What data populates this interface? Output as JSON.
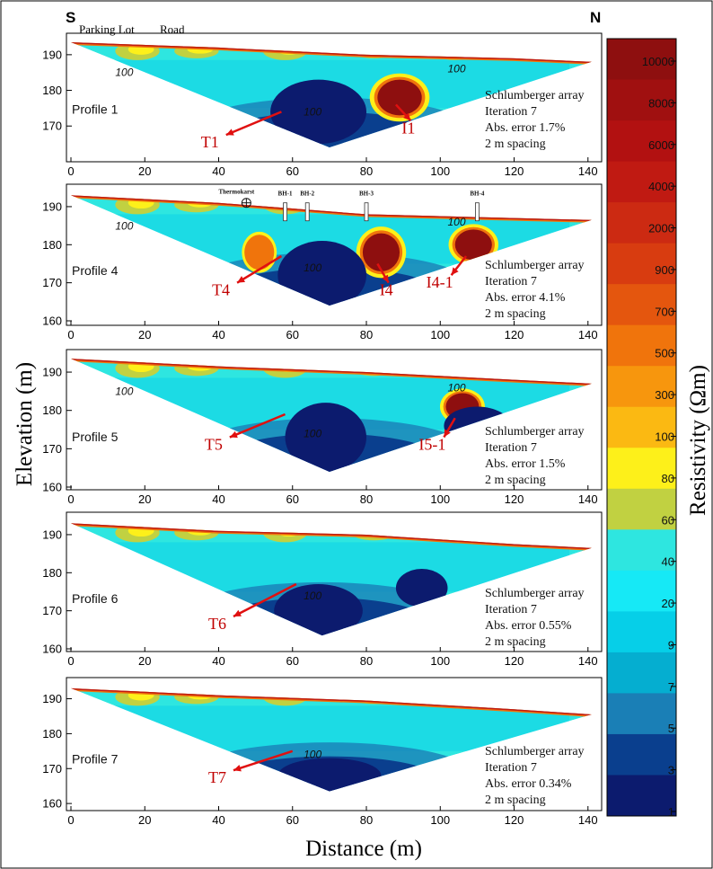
{
  "header": {
    "left_letter": "S",
    "right_letter": "N",
    "landmark_1": "Parking Lot",
    "landmark_2": "Road"
  },
  "chart_data": {
    "type": "heatmap",
    "xlabel": "Distance (m)",
    "ylabel": "Elevation (m)",
    "colorbar_label": "Resistivity (Ωm)",
    "xlim": [
      0,
      142
    ],
    "x_ticks": [
      0,
      20,
      40,
      60,
      80,
      100,
      120,
      140
    ],
    "colorbar": {
      "tick_labels": [
        "10000",
        "8000",
        "6000",
        "4000",
        "2000",
        "900",
        "700",
        "500",
        "300",
        "100",
        "80",
        "60",
        "40",
        "20",
        "9",
        "7",
        "5",
        "3",
        "1"
      ],
      "colors": [
        "#8e0f0f",
        "#a01010",
        "#b21111",
        "#c01a12",
        "#cc2a12",
        "#d83c10",
        "#e4560e",
        "#f0740c",
        "#f7960d",
        "#fbb912",
        "#fdf01a",
        "#c1d141",
        "#2ee6e0",
        "#16e9f6",
        "#06cfe8",
        "#05aed0",
        "#1a7fb6",
        "#0a3f8e",
        "#0c1b6e"
      ]
    },
    "profiles": [
      {
        "name": "Profile 1",
        "ylim": [
          163,
          194
        ],
        "y_ticks": [
          170,
          180,
          190
        ],
        "method": [
          "Schlumberger array",
          "Iteration 7",
          "Abs. error 1.7%",
          "2 m spacing"
        ],
        "surface": [
          [
            0,
            193.5
          ],
          [
            40,
            192
          ],
          [
            80,
            190
          ],
          [
            120,
            189
          ],
          [
            141,
            188
          ]
        ],
        "bottom_apex": [
          70,
          164
        ],
        "contours": [
          "100",
          "100",
          "100"
        ],
        "annotations": [
          {
            "label": "T1",
            "from": [
              57,
              174
            ],
            "to": [
              42,
              167.5
            ]
          },
          {
            "label": "I1",
            "from": [
              88,
              176
            ],
            "to": [
              92,
              171.5
            ]
          }
        ],
        "anomalies": [
          {
            "cx": 89,
            "cy": 178,
            "rx": 6,
            "ry": 5,
            "class": ">10000"
          },
          {
            "cx": 67,
            "cy": 174,
            "rx": 13,
            "ry": 9,
            "class": "<1"
          }
        ]
      },
      {
        "name": "Profile 4",
        "ylim": [
          160,
          194
        ],
        "y_ticks": [
          160,
          170,
          180,
          190
        ],
        "method": [
          "Schlumberger array",
          "Iteration 7",
          "Abs. error 4.1%",
          "2 m spacing"
        ],
        "surface": [
          [
            0,
            193
          ],
          [
            40,
            191
          ],
          [
            80,
            188
          ],
          [
            120,
            187
          ],
          [
            141,
            186.5
          ]
        ],
        "bottom_apex": [
          70,
          164
        ],
        "contours": [
          "100",
          "100",
          "100"
        ],
        "boreholes": [
          "BH-1",
          "BH-2",
          "BH-3",
          "BH-4"
        ],
        "feature_label": "Thermokarst",
        "annotations": [
          {
            "label": "T4",
            "from": [
              57,
              177
            ],
            "to": [
              45,
              170
            ]
          },
          {
            "label": "I4",
            "from": [
              83,
              175
            ],
            "to": [
              86,
              170
            ]
          },
          {
            "label": "I4-1",
            "from": [
              107,
              177
            ],
            "to": [
              103,
              172
            ]
          }
        ],
        "anomalies": [
          {
            "cx": 51,
            "cy": 178,
            "rx": 3.5,
            "ry": 4,
            "class": "1000-2000"
          },
          {
            "cx": 84,
            "cy": 178,
            "rx": 5,
            "ry": 5,
            "class": ">10000"
          },
          {
            "cx": 109,
            "cy": 180,
            "rx": 5,
            "ry": 4,
            "class": ">10000"
          },
          {
            "cx": 68,
            "cy": 172,
            "rx": 12,
            "ry": 9,
            "class": "<1"
          }
        ]
      },
      {
        "name": "Profile 5",
        "ylim": [
          160,
          194
        ],
        "y_ticks": [
          160,
          170,
          180,
          190
        ],
        "method": [
          "Schlumberger array",
          "Iteration 7",
          "Abs. error 1.5%",
          "2 m spacing"
        ],
        "surface": [
          [
            0,
            193.5
          ],
          [
            40,
            191.5
          ],
          [
            80,
            190
          ],
          [
            120,
            188
          ],
          [
            141,
            187
          ]
        ],
        "bottom_apex": [
          70,
          164
        ],
        "contours": [
          "100",
          "100",
          "100"
        ],
        "annotations": [
          {
            "label": "T5",
            "from": [
              58,
              179
            ],
            "to": [
              43,
              173
            ]
          },
          {
            "label": "I5-1",
            "from": [
              104,
              178
            ],
            "to": [
              101,
              173
            ]
          }
        ],
        "anomalies": [
          {
            "cx": 106,
            "cy": 181,
            "rx": 4.5,
            "ry": 3.5,
            "class": ">10000"
          },
          {
            "cx": 69,
            "cy": 173,
            "rx": 11,
            "ry": 9,
            "class": "<1"
          },
          {
            "cx": 110,
            "cy": 176,
            "rx": 9,
            "ry": 5,
            "class": "<1"
          }
        ]
      },
      {
        "name": "Profile 6",
        "ylim": [
          160,
          194
        ],
        "y_ticks": [
          160,
          170,
          180,
          190
        ],
        "method": [
          "Schlumberger array",
          "Iteration 7",
          "Abs. error 0.55%",
          "2 m spacing"
        ],
        "surface": [
          [
            0,
            193
          ],
          [
            40,
            191
          ],
          [
            80,
            190
          ],
          [
            120,
            187.5
          ],
          [
            141,
            186.5
          ]
        ],
        "bottom_apex": [
          68,
          163.5
        ],
        "contours": [
          "100"
        ],
        "annotations": [
          {
            "label": "T6",
            "from": [
              61,
              177
            ],
            "to": [
              44,
              168.5
            ]
          }
        ],
        "anomalies": [
          {
            "cx": 67,
            "cy": 170,
            "rx": 12,
            "ry": 7,
            "class": "<1"
          },
          {
            "cx": 95,
            "cy": 176,
            "rx": 7,
            "ry": 5,
            "class": "<1"
          }
        ]
      },
      {
        "name": "Profile 7",
        "ylim": [
          159,
          194
        ],
        "y_ticks": [
          160,
          170,
          180,
          190
        ],
        "method": [
          "Schlumberger array",
          "Iteration 7",
          "Abs. error 0.34%",
          "2 m spacing"
        ],
        "surface": [
          [
            0,
            193
          ],
          [
            40,
            191
          ],
          [
            80,
            189.5
          ],
          [
            120,
            187
          ],
          [
            141,
            185.5
          ]
        ],
        "bottom_apex": [
          70,
          163.5
        ],
        "contours": [
          "100"
        ],
        "annotations": [
          {
            "label": "T7",
            "from": [
              60,
              175
            ],
            "to": [
              44,
              169.5
            ]
          }
        ],
        "anomalies": [
          {
            "cx": 70,
            "cy": 168,
            "rx": 14,
            "ry": 5,
            "class": "<1"
          }
        ]
      }
    ]
  }
}
